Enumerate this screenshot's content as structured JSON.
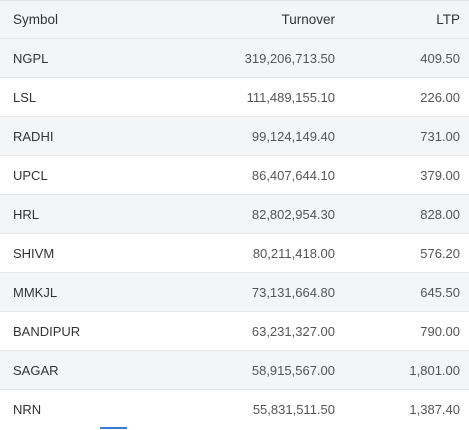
{
  "table": {
    "headers": {
      "symbol": "Symbol",
      "turnover": "Turnover",
      "ltp": "LTP"
    },
    "rows": [
      {
        "symbol": "NGPL",
        "turnover": "319,206,713.50",
        "ltp": "409.50"
      },
      {
        "symbol": "LSL",
        "turnover": "111,489,155.10",
        "ltp": "226.00"
      },
      {
        "symbol": "RADHI",
        "turnover": "99,124,149.40",
        "ltp": "731.00"
      },
      {
        "symbol": "UPCL",
        "turnover": "86,407,644.10",
        "ltp": "379.00"
      },
      {
        "symbol": "HRL",
        "turnover": "82,802,954.30",
        "ltp": "828.00"
      },
      {
        "symbol": "SHIVM",
        "turnover": "80,211,418.00",
        "ltp": "576.20"
      },
      {
        "symbol": "MMKJL",
        "turnover": "73,131,664.80",
        "ltp": "645.50"
      },
      {
        "symbol": "BANDIPUR",
        "turnover": "63,231,327.00",
        "ltp": "790.00"
      },
      {
        "symbol": "SAGAR",
        "turnover": "58,915,567.00",
        "ltp": "1,801.00"
      },
      {
        "symbol": "NRN",
        "turnover": "55,831,511.50",
        "ltp": "1,387.40"
      }
    ]
  },
  "colors": {
    "row_alt": "#f4f5f7",
    "row_plain": "#ffffff",
    "accent": "#3a7bd5"
  }
}
